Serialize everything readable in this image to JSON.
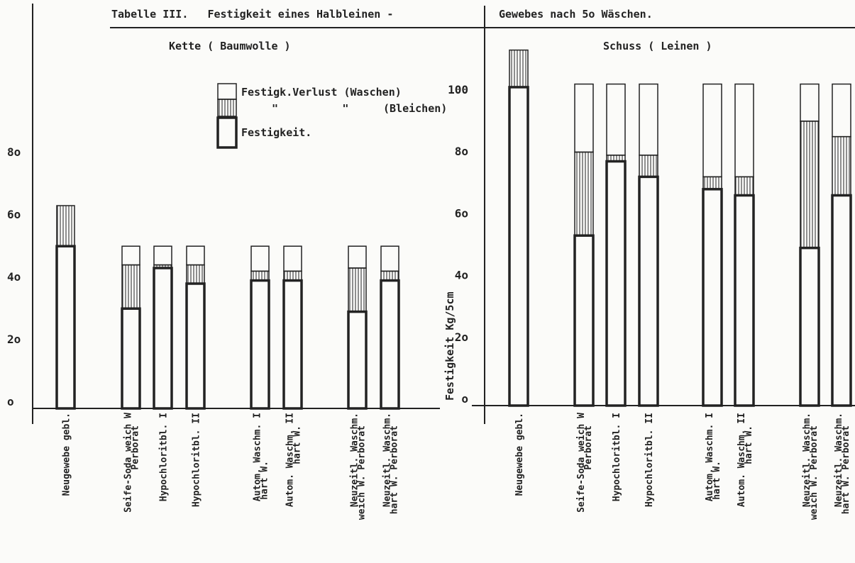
{
  "title_left": "Tabelle III.   Festigkeit eines Halbleinen -",
  "title_right": "Gewebes nach 5o Wäschen.",
  "colors": {
    "ink": "#222222",
    "paper": "#fbfbf9"
  },
  "legend": {
    "loss_washing": "Festigk.Verlust (Waschen)",
    "loss_bleaching_mark": "\"          \"",
    "loss_bleaching": "(Bleichen)",
    "strength": "Festigkeit."
  },
  "chart_data": [
    {
      "type": "bar",
      "stacked": true,
      "subtitle": "Kette ( Baumwolle )",
      "ylabel": "",
      "ylim": [
        0,
        100
      ],
      "y_ticks": [
        {
          "value": 0,
          "label": "o"
        },
        {
          "value": 20,
          "label": "2o"
        },
        {
          "value": 40,
          "label": "4o"
        },
        {
          "value": 60,
          "label": "6o"
        },
        {
          "value": 80,
          "label": "8o"
        }
      ],
      "categories": [
        {
          "line1": "Neugewebe gebl.",
          "line2": ""
        },
        {
          "line1": "Seife-Soda weich W",
          "line2": "Perborat"
        },
        {
          "line1": "Hypochloritbl. I",
          "line2": ""
        },
        {
          "line1": "Hypochloritbl. II",
          "line2": ""
        },
        {
          "line1": "Autom. Waschm. I",
          "line2": "hart W."
        },
        {
          "line1": "Autom. Waschm. II",
          "line2": "hart W."
        },
        {
          "line1": "Neuzeitl. Waschm.",
          "line2": "weich W. Perborat"
        },
        {
          "line1": "Neuzeitl. Waschm.",
          "line2": "hart W. Perborat"
        }
      ],
      "series": [
        {
          "key": "strength",
          "values": [
            52,
            32,
            45,
            40,
            41,
            41,
            31,
            41
          ]
        },
        {
          "key": "bleach",
          "values": [
            13,
            14,
            1,
            6,
            3,
            3,
            14,
            3
          ]
        },
        {
          "key": "wash",
          "values": [
            0,
            6,
            6,
            6,
            8,
            8,
            7,
            8
          ]
        }
      ]
    },
    {
      "type": "bar",
      "stacked": true,
      "subtitle": "Schuss ( Leinen )",
      "ylabel": "Festigkeit Kg/5cm",
      "ylim": [
        0,
        110
      ],
      "y_ticks": [
        {
          "value": 0,
          "label": "o"
        },
        {
          "value": 20,
          "label": "2o"
        },
        {
          "value": 40,
          "label": "4o"
        },
        {
          "value": 60,
          "label": "6o"
        },
        {
          "value": 80,
          "label": "8o"
        },
        {
          "value": 100,
          "label": "100"
        }
      ],
      "categories": [
        {
          "line1": "Neugewebe gebl.",
          "line2": ""
        },
        {
          "line1": "Seife-Soda weich W",
          "line2": "Perborat"
        },
        {
          "line1": "Hypochloritbl. I",
          "line2": ""
        },
        {
          "line1": "Hypochloritbl. II",
          "line2": ""
        },
        {
          "line1": "Autom. Waschm. I",
          "line2": "hart W."
        },
        {
          "line1": "Autom. Waschm. II",
          "line2": "hart W."
        },
        {
          "line1": "Neuzeitl. Waschm.",
          "line2": "weich W. Perborat"
        },
        {
          "line1": "Neuzeitl. Waschm.",
          "line2": "hart W. Perborat"
        }
      ],
      "series": [
        {
          "key": "strength",
          "values": [
            103,
            55,
            79,
            74,
            70,
            68,
            51,
            68
          ]
        },
        {
          "key": "bleach",
          "values": [
            12,
            27,
            2,
            7,
            4,
            6,
            41,
            19
          ]
        },
        {
          "key": "wash",
          "values": [
            0,
            22,
            23,
            23,
            30,
            30,
            12,
            17
          ]
        }
      ]
    }
  ]
}
